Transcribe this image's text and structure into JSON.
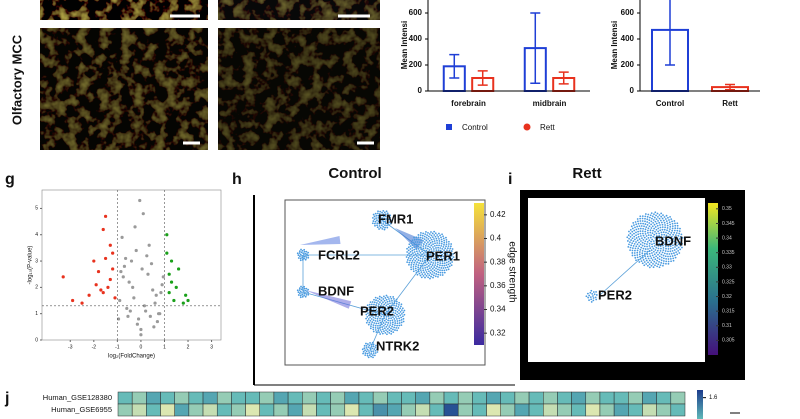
{
  "figure": {
    "row_label": "Olfactory MCC",
    "panel_labels": [
      "g",
      "h",
      "i",
      "j"
    ]
  },
  "chart_data": [
    {
      "type": "bar",
      "ylabel": "Mean Intensi",
      "categories": [
        "forebrain",
        "midbrain"
      ],
      "series": [
        {
          "name": "Control",
          "color": "#1f3fd6",
          "values": [
            190,
            330
          ],
          "errors": [
            90,
            270
          ]
        },
        {
          "name": "Rett",
          "color": "#e8321e",
          "values": [
            100,
            100
          ],
          "errors": [
            55,
            45
          ]
        }
      ],
      "ylim": [
        0,
        700
      ],
      "yticks": [
        0,
        200,
        400,
        600
      ]
    },
    {
      "type": "bar",
      "ylabel": "Mean Intensi",
      "categories": [
        "Control",
        "Rett"
      ],
      "series": [
        {
          "colors": [
            "#1f3fd6",
            "#e8321e"
          ],
          "values": [
            470,
            30
          ],
          "errors": [
            270,
            20
          ]
        }
      ],
      "ylim": [
        0,
        700
      ],
      "yticks": [
        0,
        200,
        400,
        600
      ]
    },
    {
      "type": "scatter",
      "xlabel": "log₂(FoldChange)",
      "ylabel": "-log₁₀(P-value)",
      "xlim": [
        -4.2,
        3.4
      ],
      "ylim": [
        0,
        5.7
      ],
      "xticks": [
        -3,
        -2,
        -1,
        0,
        1,
        2,
        3
      ],
      "yticks": [
        0,
        1,
        2,
        3,
        4,
        5
      ],
      "x_cutoffs": [
        -1,
        1
      ],
      "y_cutoff": 1.3,
      "series": [
        {
          "color": "#9a9a9a",
          "x": [
            -0.1,
            0.2,
            -0.3,
            0.4,
            -0.5,
            0.6,
            -0.7,
            0.8,
            -0.2,
            0.1,
            0.3,
            -0.4,
            0.5,
            -0.6,
            0.7,
            -0.8,
            0.0,
            -0.9,
            0.9,
            -0.15,
            0.25,
            -0.35,
            0.45,
            -0.55,
            0.65,
            -0.75,
            0.15,
            -0.05,
            0.35,
            -0.45,
            0.05,
            -0.25,
            0.55,
            -0.65,
            0.75,
            -0.85,
            0.85,
            -0.95,
            0.95,
            0.0
          ],
          "y": [
            0.8,
            1.1,
            1.6,
            0.9,
            2.2,
            1.4,
            2.8,
            1.0,
            3.4,
            4.8,
            2.5,
            3.0,
            1.9,
            1.2,
            0.7,
            3.9,
            0.4,
            1.5,
            2.1,
            0.6,
            3.2,
            2.0,
            2.9,
            0.9,
            1.7,
            2.4,
            1.3,
            5.3,
            3.6,
            1.1,
            2.7,
            4.3,
            0.5,
            3.1,
            1.0,
            2.6,
            1.8,
            0.8,
            2.4,
            0.2
          ]
        },
        {
          "color": "#e8321e",
          "x": [
            -3.3,
            -2.2,
            -2.0,
            -1.8,
            -1.6,
            -1.5,
            -1.4,
            -1.3,
            -1.2,
            -1.1,
            -2.5,
            -1.9,
            -1.7,
            -1.5,
            -1.3,
            -1.2,
            -2.9,
            -1.6
          ],
          "y": [
            2.4,
            1.7,
            3.0,
            2.6,
            4.2,
            3.1,
            2.0,
            3.6,
            2.7,
            1.6,
            1.4,
            2.1,
            1.9,
            4.7,
            2.3,
            3.3,
            1.5,
            1.8
          ]
        },
        {
          "color": "#1aa01a",
          "x": [
            1.1,
            1.2,
            1.3,
            1.5,
            1.2,
            1.4,
            1.8,
            1.1,
            1.6,
            2.0,
            1.3,
            1.9
          ],
          "y": [
            3.3,
            2.5,
            3.0,
            2.0,
            1.8,
            1.5,
            1.4,
            4.0,
            2.7,
            1.5,
            2.2,
            1.7
          ]
        }
      ]
    },
    {
      "type": "heatmap",
      "rows": [
        "Human_GSE128380",
        "Human_GSE6955"
      ],
      "zlim": [
        0.8,
        1.7
      ],
      "colorbar_ticks": [
        1.6
      ],
      "values": [
        [
          1.1,
          1.0,
          1.2,
          1.1,
          1.0,
          1.1,
          1.2,
          1.0,
          1.1,
          1.1,
          1.0,
          1.2,
          1.1,
          1.0,
          1.1,
          1.0,
          1.2,
          1.1,
          1.0,
          1.1,
          1.1,
          1.2,
          1.0,
          1.1,
          1.0,
          1.1,
          1.2,
          1.1,
          1.0,
          1.1,
          1.0,
          1.1,
          1.2,
          1.0,
          1.1,
          1.1,
          1.0,
          1.2,
          1.1,
          1.0
        ],
        [
          1.0,
          0.9,
          1.1,
          0.85,
          1.2,
          1.0,
          0.9,
          1.1,
          1.0,
          0.85,
          1.1,
          1.0,
          1.2,
          0.9,
          1.1,
          1.0,
          0.85,
          1.1,
          1.3,
          1.2,
          1.0,
          0.9,
          1.1,
          1.6,
          1.0,
          1.1,
          0.85,
          1.0,
          1.2,
          1.1,
          0.9,
          1.0,
          1.1,
          0.85,
          1.0,
          1.2,
          1.1,
          0.9,
          1.0,
          1.1
        ]
      ]
    }
  ],
  "network_h": {
    "title": "Control",
    "nodes": [
      "FMR1",
      "PER1",
      "FCRL2",
      "BDNF",
      "PER2",
      "NTRK2"
    ],
    "colorbar_label": "edge strength",
    "colorbar_lim": [
      0.31,
      0.43
    ],
    "colorbar_ticks": [
      0.42,
      0.4,
      0.38,
      0.36,
      0.34,
      0.32
    ]
  },
  "network_i": {
    "title": "Rett",
    "nodes": [
      "BDNF",
      "PER2"
    ],
    "colorbar_lim": [
      0.3,
      0.352
    ],
    "colorbar_ticks": [
      0.35,
      0.345,
      0.34,
      0.335,
      0.33,
      0.325,
      0.32,
      0.315,
      0.31,
      0.305
    ]
  }
}
